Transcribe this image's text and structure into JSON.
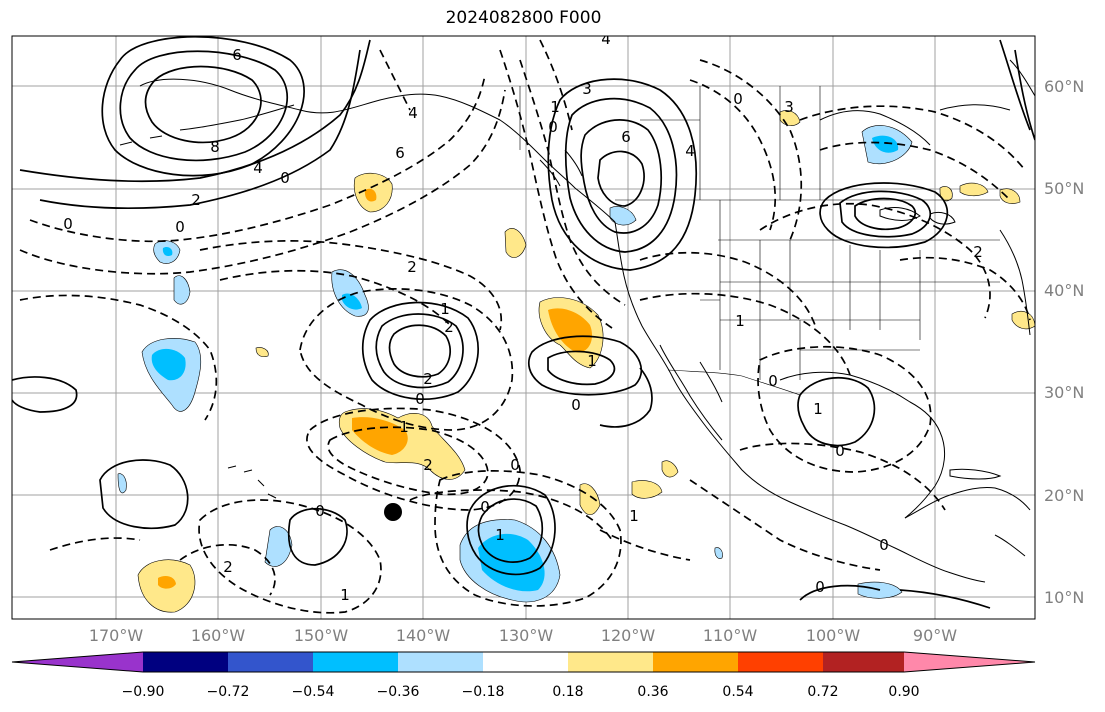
{
  "title": "2024082800 F000",
  "lat_labels": [
    "60°N",
    "50°N",
    "40°N",
    "30°N",
    "20°N",
    "10°N"
  ],
  "lon_labels": [
    "170°W",
    "160°W",
    "150°W",
    "140°W",
    "130°W",
    "120°W",
    "110°W",
    "100°W",
    "90°W"
  ],
  "colorbar": {
    "colors": [
      "#9933cc",
      "#000080",
      "#3355cc",
      "#00bfff",
      "#aee0ff",
      "#ffffff",
      "#ffe88a",
      "#ffa500",
      "#ff4000",
      "#b22222",
      "#ff88aa"
    ],
    "tick_labels": [
      "−0.90",
      "−0.72",
      "−0.54",
      "−0.36",
      "−0.18",
      "0.18",
      "0.36",
      "0.54",
      "0.72",
      "0.90"
    ]
  },
  "marker": {
    "shape": "filled-circle",
    "lat": 18.5,
    "lon": -143
  },
  "contour_labels": [
    "0",
    "0",
    "2",
    "4",
    "6",
    "8",
    "6",
    "4",
    "2",
    "0",
    "1",
    "2",
    "2",
    "1",
    "0",
    "1",
    "2",
    "0",
    "1",
    "0",
    "0",
    "1",
    "6",
    "4",
    "3",
    "1",
    "0",
    "3",
    "0",
    "2",
    "1",
    "0",
    "1",
    "0",
    "0",
    "0",
    "2",
    "1",
    "0",
    "4"
  ]
}
